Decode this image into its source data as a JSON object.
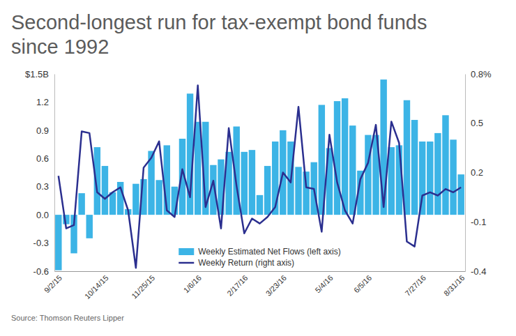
{
  "chart_data": {
    "type": "bar",
    "title": "Second-longest run for tax-exempt bond funds since 1992",
    "source": "Source: Thomson Reuters Lipper",
    "categories": [
      "9/2/15",
      null,
      null,
      null,
      null,
      null,
      "10/14/15",
      null,
      null,
      null,
      null,
      null,
      "11/25/15",
      null,
      null,
      null,
      null,
      null,
      "1/6/16",
      null,
      null,
      null,
      null,
      null,
      "2/17/16",
      null,
      null,
      null,
      null,
      "3/23/16",
      null,
      null,
      null,
      null,
      null,
      "5/4/16",
      null,
      null,
      null,
      null,
      "6/5/16",
      null,
      null,
      null,
      null,
      null,
      null,
      "7/27/16",
      null,
      null,
      null,
      null,
      "8/31/16"
    ],
    "series": [
      {
        "name": "Weekly Estimated Net Flows (left axis)",
        "type": "bar",
        "color": "#3cb4e6",
        "values": [
          -0.59,
          -0.1,
          -0.41,
          0.23,
          -0.25,
          0.72,
          0.52,
          0.24,
          0.35,
          0.06,
          0.33,
          0.38,
          0.68,
          0.37,
          0.74,
          0.3,
          0.81,
          1.29,
          0.99,
          0.99,
          0.53,
          0.59,
          0.67,
          0.94,
          0.67,
          0.69,
          0.21,
          0.52,
          0.78,
          0.9,
          0.78,
          0.51,
          0.46,
          0.56,
          1.17,
          0.71,
          1.21,
          1.24,
          0.95,
          0.47,
          0.85,
          0.85,
          1.44,
          0.72,
          0.74,
          1.22,
          1.01,
          0.78,
          0.78,
          0.87,
          1.06,
          0.8,
          0.43
        ]
      },
      {
        "name": "Weekly Return (right axis)",
        "type": "line",
        "axis": "y2",
        "color": "#2b2f8f",
        "values": [
          0.18,
          -0.14,
          -0.12,
          0.45,
          0.44,
          0.08,
          0.04,
          0.08,
          0.11,
          -0.03,
          -0.38,
          0.23,
          0.29,
          0.39,
          -0.03,
          -0.07,
          0.22,
          0.05,
          0.73,
          -0.01,
          0.15,
          -0.14,
          0.47,
          0.12,
          -0.17,
          -0.08,
          -0.11,
          -0.07,
          -0.01,
          0.2,
          0.14,
          0.6,
          0.11,
          0.1,
          -0.16,
          0.43,
          0.14,
          -0.03,
          -0.11,
          0.16,
          0.26,
          0.49,
          -0.01,
          0.51,
          0.38,
          -0.22,
          -0.25,
          0.06,
          0.08,
          0.06,
          0.1,
          0.08,
          0.11
        ]
      }
    ],
    "ylim": [
      -0.6,
      1.5
    ],
    "yticks": [
      -0.6,
      -0.3,
      {
        "value": 0,
        "label": "0.0"
      },
      0.3,
      0.6,
      0.9,
      1.2,
      {
        "value": 1.5,
        "label": "$1.5B"
      }
    ],
    "y2lim": [
      -0.4,
      0.8
    ],
    "y2ticks": [
      -0.4,
      -0.1,
      0.2,
      0.5,
      {
        "value": 0.8,
        "label": "0.8%"
      }
    ],
    "grid": false,
    "legend": "bottom"
  }
}
